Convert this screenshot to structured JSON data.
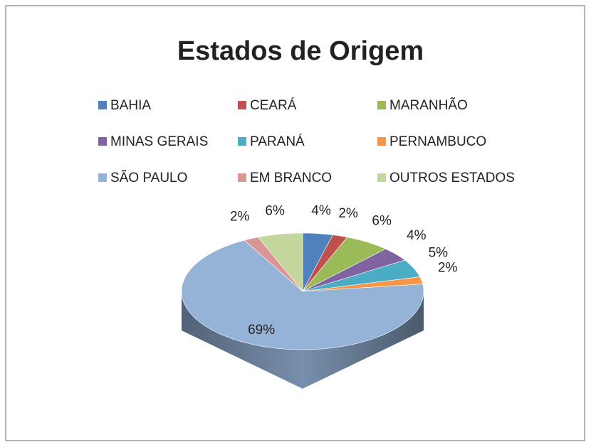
{
  "chart_data": {
    "type": "pie",
    "title": "Estados de Origem",
    "categories": [
      "BAHIA",
      "CEARÁ",
      "MARANHÃO",
      "MINAS GERAIS",
      "PARANÁ",
      "PERNAMBUCO",
      "SÃO PAULO",
      "EM BRANCO",
      "OUTROS ESTADOS"
    ],
    "values": [
      4,
      2,
      6,
      4,
      5,
      2,
      69,
      2,
      6
    ],
    "value_labels": [
      "4%",
      "2%",
      "6%",
      "4%",
      "5%",
      "2%",
      "69%",
      "2%",
      "6%"
    ],
    "colors": [
      "#4f81bd",
      "#c0504d",
      "#9bbb59",
      "#8064a2",
      "#4bacc6",
      "#f79646",
      "#95b3d7",
      "#d99694",
      "#c3d69b"
    ],
    "legend": "top"
  }
}
